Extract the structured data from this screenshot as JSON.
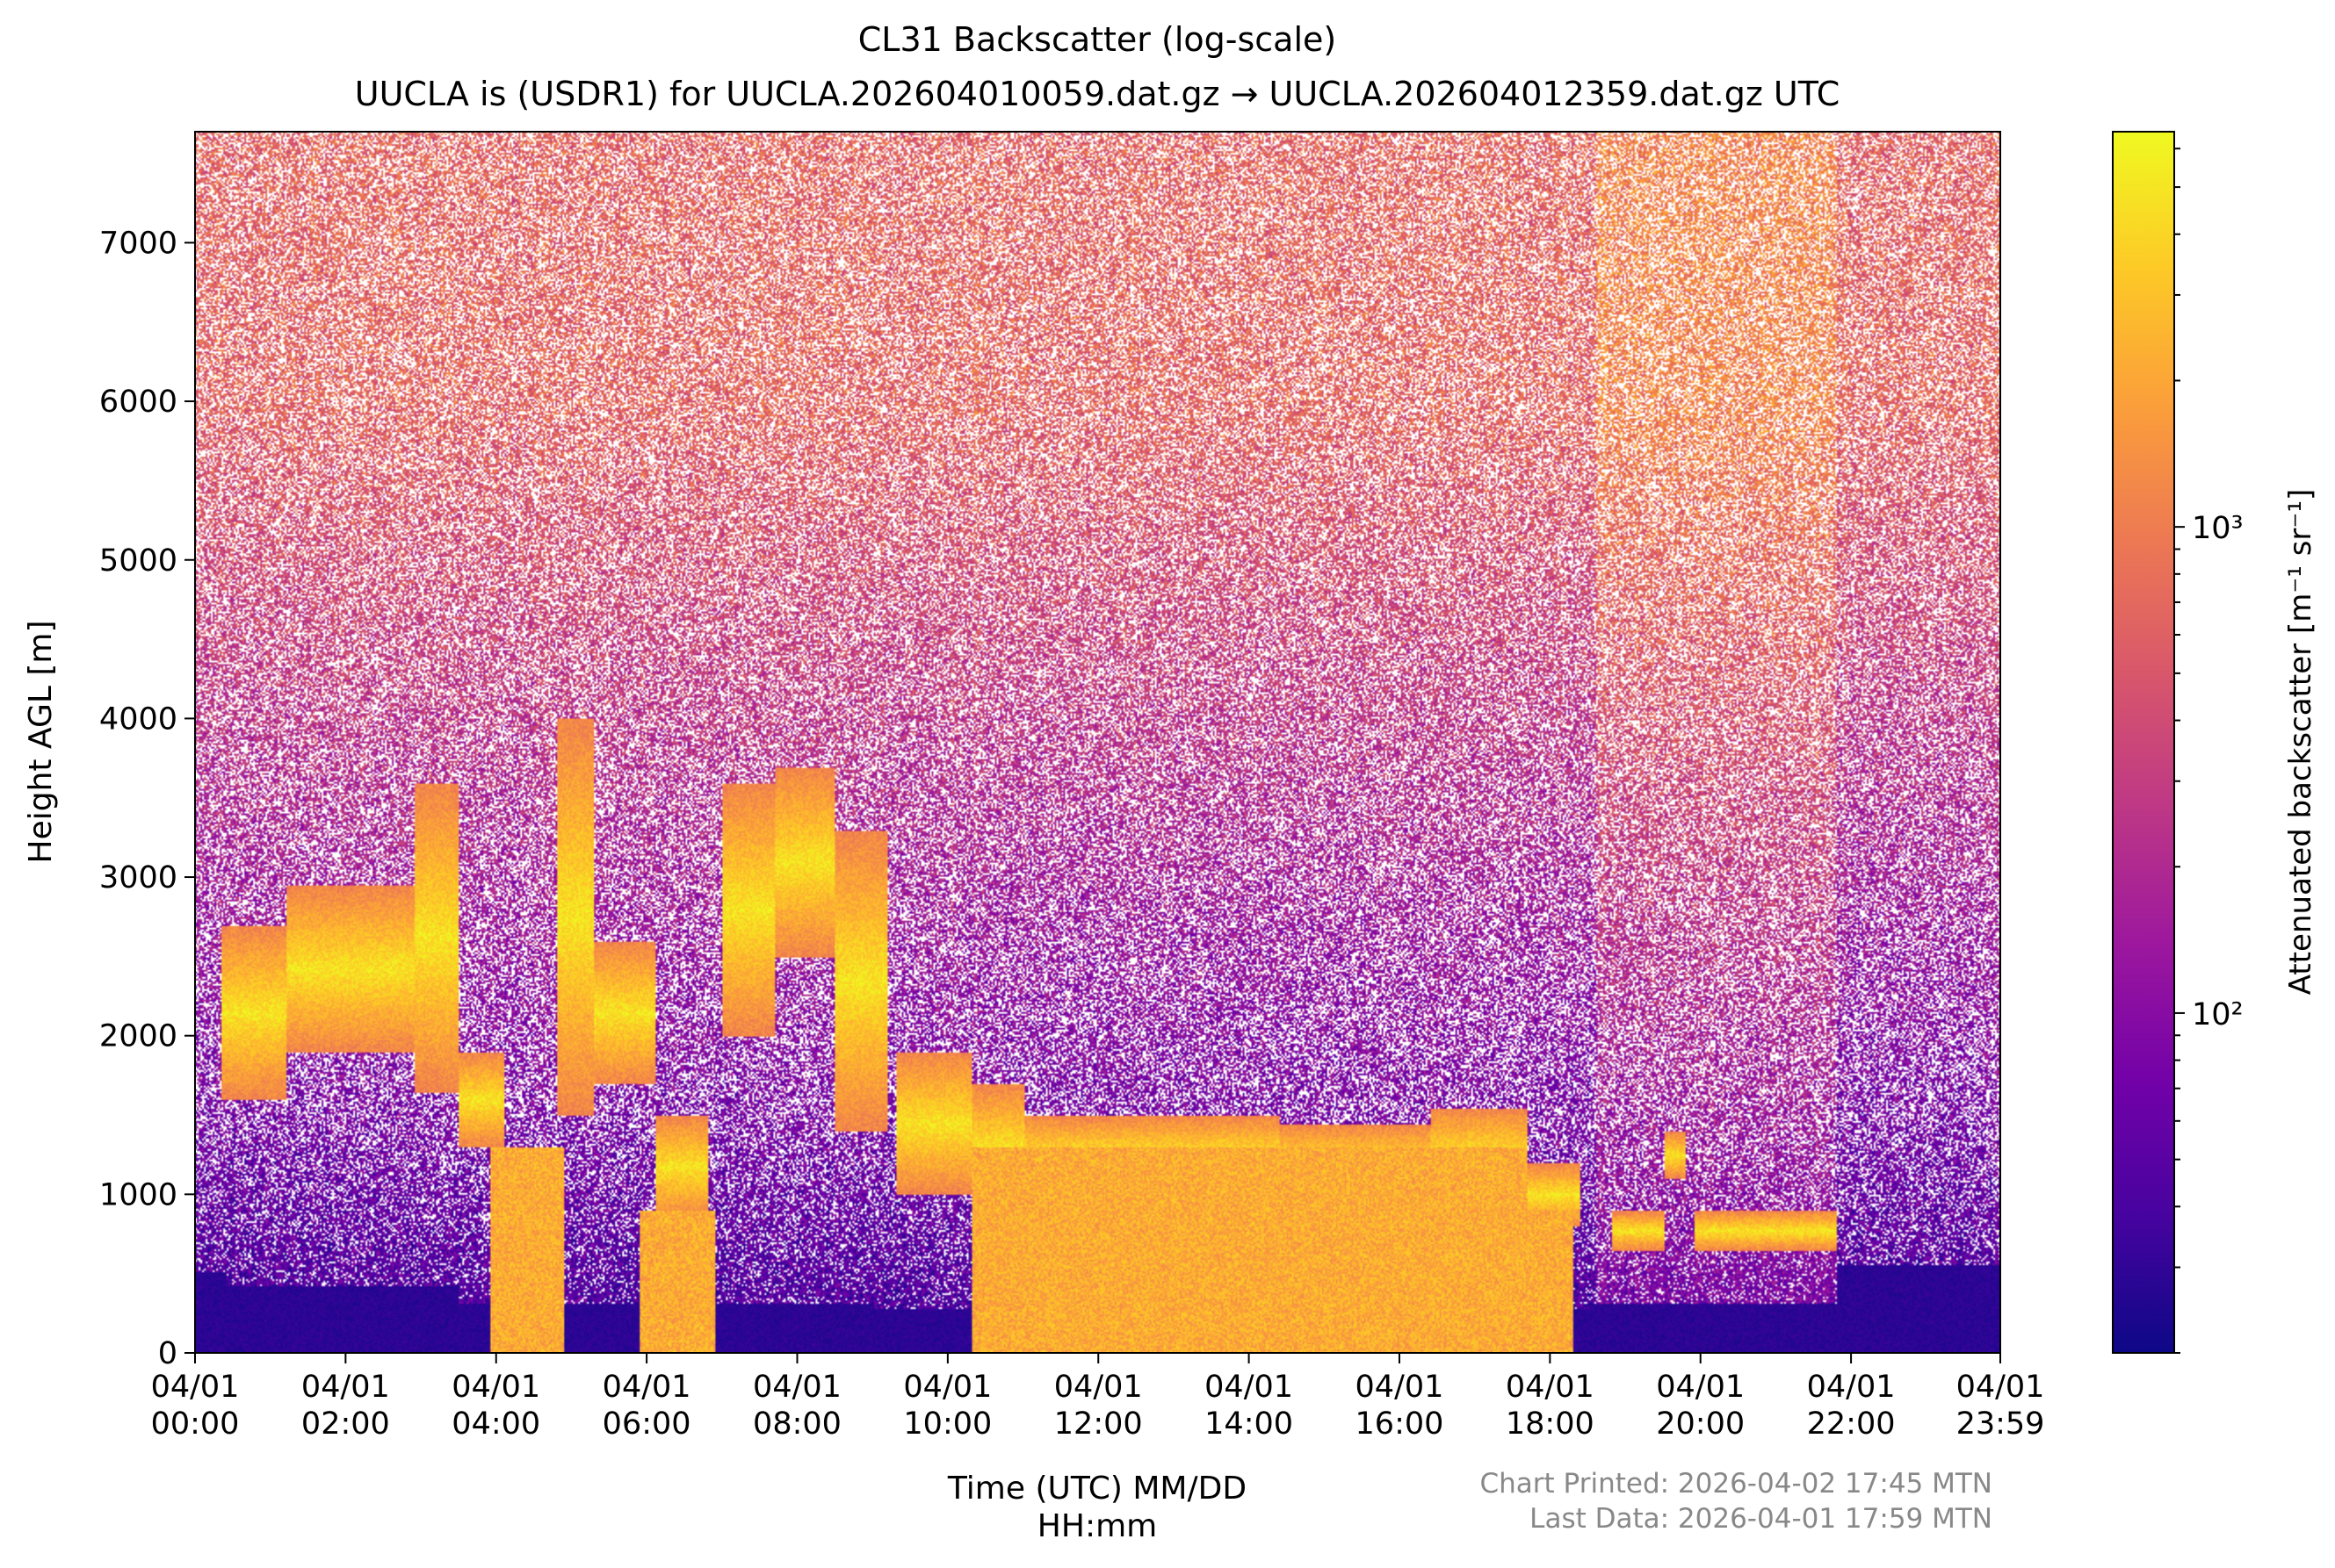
{
  "chart_data": {
    "type": "heatmap",
    "title": "CL31 Backscatter (log-scale)",
    "subtitle": "UUCLA is (USDR1) for UUCLA.202604010059.dat.gz → UUCLA.202604012359.dat.gz UTC",
    "xlabel_line1": "Time (UTC) MM/DD",
    "xlabel_line2": "HH:mm",
    "ylabel": "Height AGL [m]",
    "xlim": [
      0,
      23.983
    ],
    "ylim": [
      0,
      7700
    ],
    "x_ticks": [
      {
        "hour": 0,
        "date": "04/01",
        "time": "00:00"
      },
      {
        "hour": 2,
        "date": "04/01",
        "time": "02:00"
      },
      {
        "hour": 4,
        "date": "04/01",
        "time": "04:00"
      },
      {
        "hour": 6,
        "date": "04/01",
        "time": "06:00"
      },
      {
        "hour": 8,
        "date": "04/01",
        "time": "08:00"
      },
      {
        "hour": 10,
        "date": "04/01",
        "time": "10:00"
      },
      {
        "hour": 12,
        "date": "04/01",
        "time": "12:00"
      },
      {
        "hour": 14,
        "date": "04/01",
        "time": "14:00"
      },
      {
        "hour": 16,
        "date": "04/01",
        "time": "16:00"
      },
      {
        "hour": 18,
        "date": "04/01",
        "time": "18:00"
      },
      {
        "hour": 20,
        "date": "04/01",
        "time": "20:00"
      },
      {
        "hour": 22,
        "date": "04/01",
        "time": "22:00"
      },
      {
        "hour": 23.983,
        "date": "04/01",
        "time": "23:59"
      }
    ],
    "y_ticks": [
      0,
      1000,
      2000,
      3000,
      4000,
      5000,
      6000,
      7000
    ],
    "colorbar": {
      "label": "Attenuated backscatter [m⁻¹ sr⁻¹]",
      "scale": "log",
      "range": [
        20,
        6500
      ],
      "major_ticks": [
        {
          "value": 100,
          "label": "10²"
        },
        {
          "value": 1000,
          "label": "10³"
        }
      ],
      "colormap": "plasma",
      "colors": [
        "#0d0887",
        "#46039f",
        "#7201a8",
        "#9c179e",
        "#bd3786",
        "#d8576b",
        "#ed7953",
        "#fb9f3a",
        "#fdca26",
        "#f0f921"
      ]
    },
    "noise_color": "#ffffff",
    "layers": [
      {
        "name": "aerosol boundary layer",
        "segments": [
          {
            "from": 0.0,
            "to": 0.4,
            "top": 520
          },
          {
            "from": 0.4,
            "to": 3.5,
            "top": 430
          },
          {
            "from": 3.5,
            "to": 9.0,
            "top": 320
          },
          {
            "from": 9.0,
            "to": 18.5,
            "top": 280
          },
          {
            "from": 18.5,
            "to": 21.8,
            "top": 320
          },
          {
            "from": 21.8,
            "to": 23.983,
            "top": 560
          }
        ]
      },
      {
        "name": "cloud band",
        "segments": [
          {
            "from": 0.35,
            "to": 1.2,
            "base": 1600,
            "top": 2700
          },
          {
            "from": 1.2,
            "to": 2.9,
            "base": 1900,
            "top": 2950
          },
          {
            "from": 2.9,
            "to": 3.5,
            "base": 1650,
            "top": 3600
          },
          {
            "from": 3.5,
            "to": 4.1,
            "base": 1300,
            "top": 1900
          },
          {
            "from": 4.8,
            "to": 5.3,
            "base": 1500,
            "top": 4000
          },
          {
            "from": 5.3,
            "to": 6.1,
            "base": 1700,
            "top": 2600
          },
          {
            "from": 6.1,
            "to": 6.8,
            "base": 850,
            "top": 1500
          },
          {
            "from": 7.0,
            "to": 7.7,
            "base": 2000,
            "top": 3600
          },
          {
            "from": 7.7,
            "to": 8.5,
            "base": 2500,
            "top": 3700
          },
          {
            "from": 8.5,
            "to": 9.2,
            "base": 1400,
            "top": 3300
          },
          {
            "from": 9.3,
            "to": 10.3,
            "base": 1000,
            "top": 1900
          },
          {
            "from": 10.3,
            "to": 11.0,
            "base": 900,
            "top": 1700
          },
          {
            "from": 11.0,
            "to": 12.6,
            "base": 1000,
            "top": 1500
          },
          {
            "from": 12.6,
            "to": 14.4,
            "base": 1000,
            "top": 1500
          },
          {
            "from": 14.4,
            "to": 16.4,
            "base": 950,
            "top": 1450
          },
          {
            "from": 16.4,
            "to": 17.7,
            "base": 950,
            "top": 1550
          },
          {
            "from": 17.7,
            "to": 18.4,
            "base": 800,
            "top": 1200
          },
          {
            "from": 18.8,
            "to": 19.5,
            "base": 650,
            "top": 900
          },
          {
            "from": 19.5,
            "to": 19.8,
            "base": 1100,
            "top": 1400
          },
          {
            "from": 19.9,
            "to": 21.8,
            "base": 650,
            "top": 900
          }
        ]
      },
      {
        "name": "ground-reaching precipitation",
        "segments": [
          {
            "from": 3.9,
            "to": 4.9,
            "top": 1300
          },
          {
            "from": 5.9,
            "to": 6.9,
            "top": 900
          },
          {
            "from": 10.3,
            "to": 17.7,
            "top": 1300
          },
          {
            "from": 17.7,
            "to": 18.3,
            "top": 900
          }
        ]
      }
    ]
  },
  "footer": {
    "printed": "Chart Printed: 2026-04-02 17:45 MTN",
    "last_data": "Last Data: 2026-04-01 17:59 MTN",
    "text_color": "#888888"
  }
}
